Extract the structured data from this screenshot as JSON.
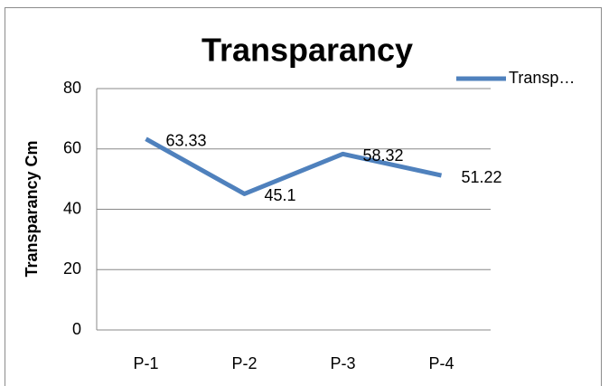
{
  "chart_data": {
    "type": "line",
    "title": "Transparancy",
    "y_label": "Transparancy  Cm",
    "categories": [
      "P-1",
      "P-2",
      "P-3",
      "P-4"
    ],
    "series": [
      {
        "name": "Transp…",
        "color": "#4f81bd",
        "values": [
          63.33,
          45.1,
          58.32,
          51.22
        ]
      }
    ],
    "ylim": [
      0,
      80
    ],
    "yticks": [
      0,
      20,
      40,
      60,
      80
    ],
    "grid": true,
    "legend": "top-right"
  }
}
